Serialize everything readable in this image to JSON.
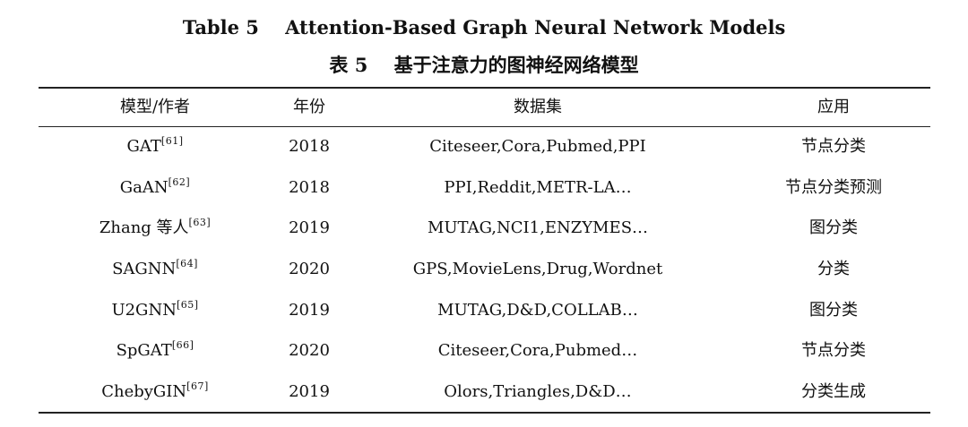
{
  "caption": {
    "english": "Table 5    Attention-Based Graph Neural Network Models",
    "chinese": "表 5    基于注意力的图神经网络模型"
  },
  "table": {
    "headers": [
      "模型/作者",
      "年份",
      "数据集",
      "应用"
    ],
    "rows": [
      {
        "model": "GAT",
        "ref": "[61]",
        "year": "2018",
        "dataset": "Citeseer,Cora,Pubmed,PPI",
        "application": "节点分类"
      },
      {
        "model": "GaAN",
        "ref": "[62]",
        "year": "2018",
        "dataset": "PPI,Reddit,METR-LA…",
        "application": "节点分类预测"
      },
      {
        "model": "Zhang 等人",
        "ref": "[63]",
        "year": "2019",
        "dataset": "MUTAG,NCI1,ENZYMES…",
        "application": "图分类"
      },
      {
        "model": "SAGNN",
        "ref": "[64]",
        "year": "2020",
        "dataset": "GPS,MovieLens,Drug,Wordnet",
        "application": "分类"
      },
      {
        "model": "U2GNN",
        "ref": "[65]",
        "year": "2019",
        "dataset": "MUTAG,D&D,COLLAB…",
        "application": "图分类"
      },
      {
        "model": "SpGAT",
        "ref": "[66]",
        "year": "2020",
        "dataset": "Citeseer,Cora,Pubmed…",
        "application": "节点分类"
      },
      {
        "model": "ChebyGIN",
        "ref": "[67]",
        "year": "2019",
        "dataset": "Olors,Triangles,D&D…",
        "application": "分类生成"
      }
    ]
  }
}
